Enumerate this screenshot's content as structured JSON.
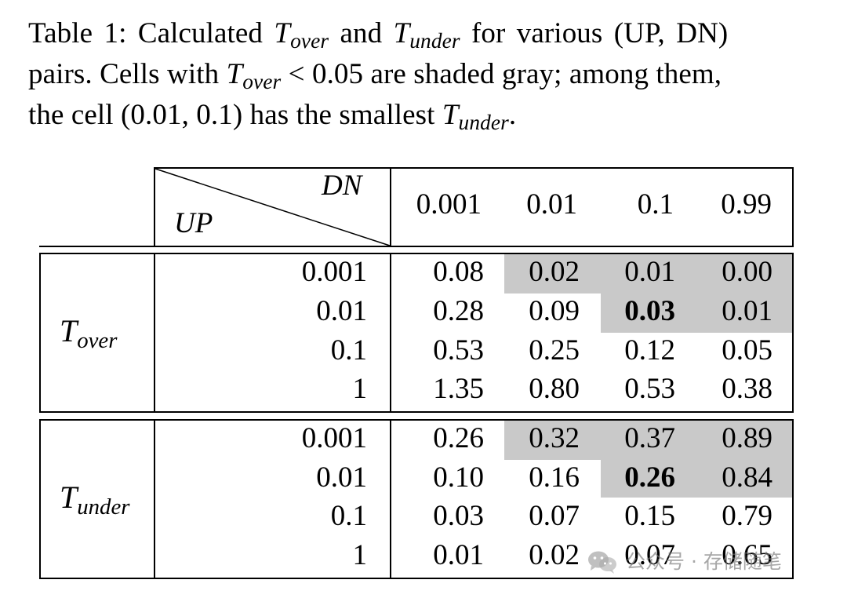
{
  "caption": {
    "part1": "Table 1: Calculated ",
    "t1_base": "T",
    "t1_sub": "over",
    "part2": " and ",
    "t2_base": "T",
    "t2_sub": "under",
    "part3": " for various (UP, DN)",
    "line2_a": "pairs. Cells with ",
    "t3_base": "T",
    "t3_sub": "over",
    "line2_b": " < 0.05 are shaded gray; among them,",
    "line3_a": "the cell (0.01, 0.1) has the smallest ",
    "t4_base": "T",
    "t4_sub": "under",
    "line3_b": "."
  },
  "header": {
    "dn_label": "DN",
    "up_label": "UP",
    "columns": [
      "0.001",
      "0.01",
      "0.1",
      "0.99"
    ]
  },
  "sections": [
    {
      "label_base": "T",
      "label_sub": "over",
      "row_labels": [
        "0.001",
        "0.01",
        "0.1",
        "1"
      ],
      "rows": [
        [
          "0.08",
          "0.02",
          "0.01",
          "0.00"
        ],
        [
          "0.28",
          "0.09",
          "0.03",
          "0.01"
        ],
        [
          "0.53",
          "0.25",
          "0.12",
          "0.05"
        ],
        [
          "1.35",
          "0.80",
          "0.53",
          "0.38"
        ]
      ]
    },
    {
      "label_base": "T",
      "label_sub": "under",
      "row_labels": [
        "0.001",
        "0.01",
        "0.1",
        "1"
      ],
      "rows": [
        [
          "0.26",
          "0.32",
          "0.37",
          "0.89"
        ],
        [
          "0.10",
          "0.16",
          "0.26",
          "0.84"
        ],
        [
          "0.03",
          "0.07",
          "0.15",
          "0.79"
        ],
        [
          "0.01",
          "0.02",
          "0.07",
          "0.65"
        ]
      ]
    }
  ],
  "watermark": {
    "text": "公众号 · 存储随笔",
    "icon": "wechat-icon"
  }
}
